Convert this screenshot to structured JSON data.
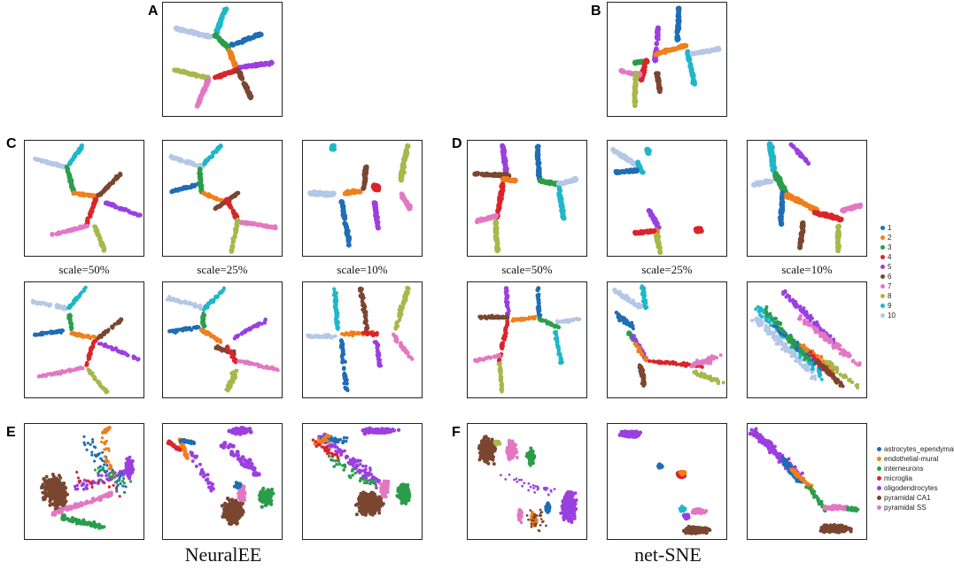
{
  "panels": {
    "A": "A",
    "B": "B",
    "C": "C",
    "D": "D",
    "E": "E",
    "F": "F"
  },
  "scale_labels": [
    "scale=50%",
    "scale=25%",
    "scale=10%",
    "scale=50%",
    "scale=25%",
    "scale=10%"
  ],
  "legend_numeric": [
    {
      "label": "1",
      "color": "#1f6db5"
    },
    {
      "label": "2",
      "color": "#f07e1a"
    },
    {
      "label": "3",
      "color": "#2a9d4b"
    },
    {
      "label": "4",
      "color": "#d9252a"
    },
    {
      "label": "5",
      "color": "#9b3fe0"
    },
    {
      "label": "6",
      "color": "#7a4630"
    },
    {
      "label": "7",
      "color": "#e377c2"
    },
    {
      "label": "8",
      "color": "#a6b84a"
    },
    {
      "label": "9",
      "color": "#1fb7c8"
    },
    {
      "label": "10",
      "color": "#b4c7e7"
    }
  ],
  "legend_celltypes": [
    {
      "label": "astrocytes_ependymal",
      "color": "#1f6db5"
    },
    {
      "label": "endothelial-mural",
      "color": "#f07e1a"
    },
    {
      "label": "interneurons",
      "color": "#2a9d4b"
    },
    {
      "label": "microglia",
      "color": "#d9252a"
    },
    {
      "label": "oligodendrocytes",
      "color": "#9b3fe0"
    },
    {
      "label": "pyramidal CA1",
      "color": "#7a4630"
    },
    {
      "label": "pyramidal SS",
      "color": "#e377c2"
    }
  ],
  "method_labels": [
    "NeuralEE",
    "net-SNE"
  ]
}
